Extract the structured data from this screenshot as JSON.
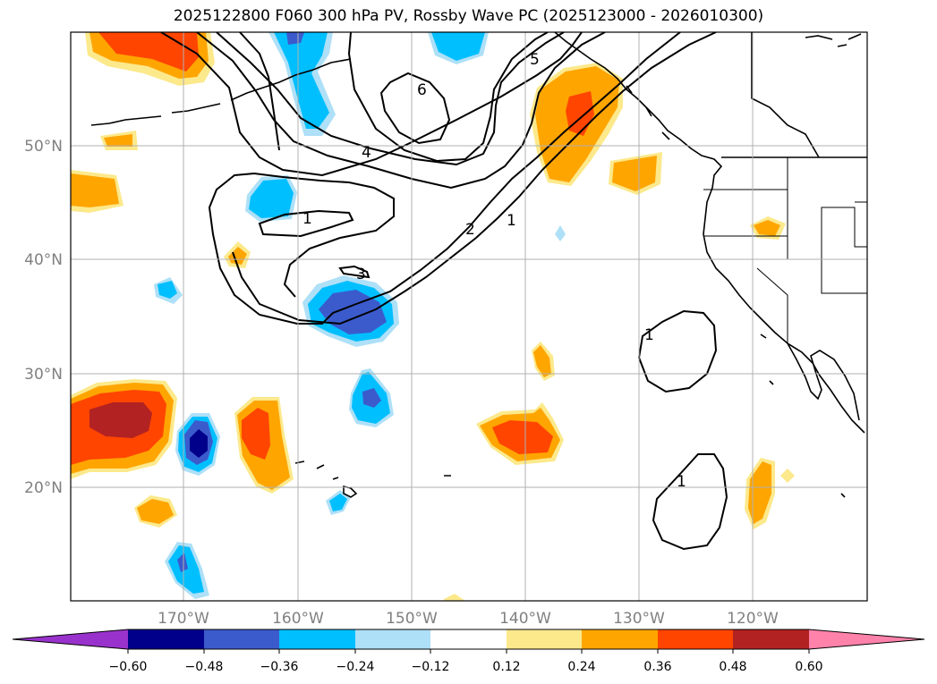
{
  "title": "2025122800 F060 300 hPa PV, Rossby Wave PC (2025123000 - 2026010300)",
  "latitude_labels": [
    "50°N",
    "40°N",
    "30°N",
    "20°N"
  ],
  "longitude_labels": [
    "170°W",
    "160°W",
    "150°W",
    "140°W",
    "130°W",
    "120°W"
  ],
  "colorbar": {
    "tick_labels": [
      "−0.60",
      "−0.48",
      "−0.36",
      "−0.24",
      "−0.12",
      "0.12",
      "0.24",
      "0.36",
      "0.48",
      "0.60"
    ],
    "colors": [
      "#9932cc",
      "#00008b",
      "#3b5bcc",
      "#00bfff",
      "#aee0f7",
      "#ffffff",
      "#fce98c",
      "#ffa500",
      "#ff4500",
      "#b22222",
      "#ff82ab"
    ]
  },
  "contour_labels": [
    "1",
    "1",
    "1",
    "1",
    "2",
    "3",
    "4",
    "5",
    "6"
  ]
}
